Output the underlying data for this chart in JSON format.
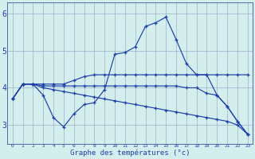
{
  "xlabel": "Graphe des températures (°c)",
  "bg_color": "#d4eeed",
  "line_color": "#1c3faa",
  "grid_color": "#a0b0c8",
  "xlabel_color": "#1c3faa",
  "tick_color": "#1c3faa",
  "ylim": [
    2.5,
    6.3
  ],
  "yticks": [
    3,
    4,
    5,
    6
  ],
  "xlim": [
    -0.5,
    23.5
  ],
  "x_hours": [
    0,
    1,
    2,
    3,
    4,
    5,
    6,
    7,
    8,
    9,
    10,
    11,
    12,
    13,
    14,
    15,
    16,
    17,
    18,
    19,
    20,
    21,
    22,
    23
  ],
  "curve_zigzag": [
    3.7,
    4.1,
    4.1,
    3.8,
    3.2,
    2.95,
    3.3,
    3.55,
    3.6,
    3.95,
    4.9,
    4.95,
    5.1,
    5.65,
    5.75,
    5.9,
    5.3,
    4.65,
    4.35,
    4.35,
    3.8,
    3.5,
    3.1,
    2.75
  ],
  "curve_high_flat": [
    3.7,
    4.1,
    4.1,
    4.1,
    4.1,
    4.1,
    4.2,
    4.3,
    4.35,
    4.35,
    4.35,
    4.35,
    4.35,
    4.35,
    4.35,
    4.35,
    4.35,
    4.35,
    4.35,
    4.35,
    4.35,
    4.35,
    4.35,
    4.35
  ],
  "curve_mid_flat": [
    3.7,
    4.1,
    4.1,
    4.05,
    4.05,
    4.05,
    4.05,
    4.05,
    4.05,
    4.05,
    4.05,
    4.05,
    4.05,
    4.05,
    4.05,
    4.05,
    4.05,
    4.0,
    4.0,
    3.85,
    3.8,
    3.5,
    3.1,
    2.75
  ],
  "curve_decline": [
    3.7,
    4.1,
    4.1,
    4.0,
    3.95,
    3.9,
    3.85,
    3.8,
    3.75,
    3.7,
    3.65,
    3.6,
    3.55,
    3.5,
    3.45,
    3.4,
    3.35,
    3.3,
    3.25,
    3.2,
    3.15,
    3.1,
    3.0,
    2.75
  ]
}
